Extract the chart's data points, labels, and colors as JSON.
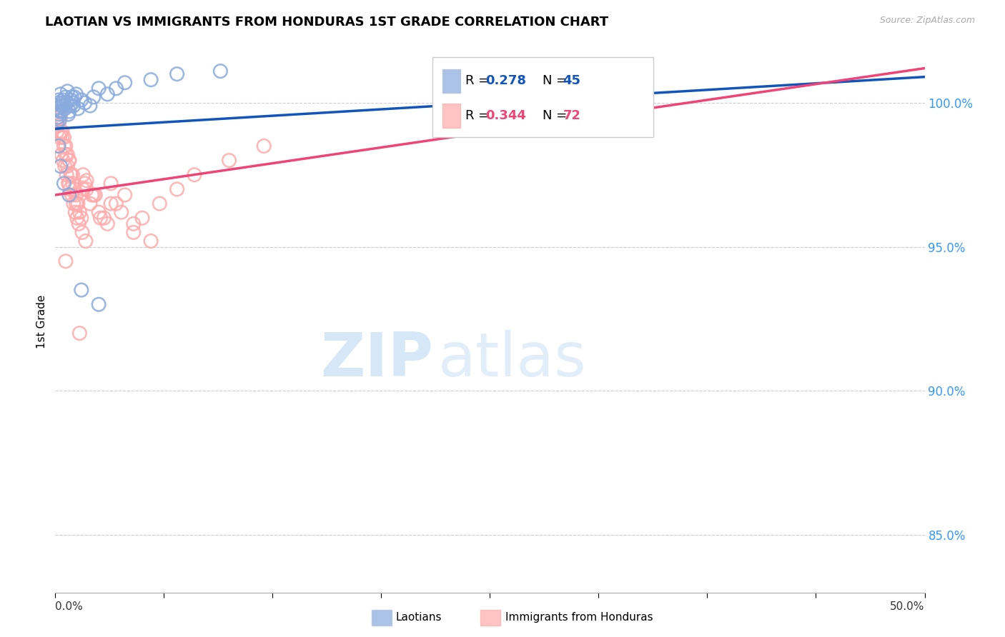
{
  "title": "LAOTIAN VS IMMIGRANTS FROM HONDURAS 1ST GRADE CORRELATION CHART",
  "source_text": "Source: ZipAtlas.com",
  "ylabel": "1st Grade",
  "xlim": [
    0.0,
    50.0
  ],
  "ylim": [
    83.0,
    101.8
  ],
  "yticks": [
    85.0,
    90.0,
    95.0,
    100.0
  ],
  "blue_R": 0.278,
  "blue_N": 45,
  "pink_R": 0.344,
  "pink_N": 72,
  "blue_color": "#88aadd",
  "pink_color": "#ffaaaa",
  "blue_line_color": "#1155bb",
  "pink_line_color": "#ee4477",
  "blue_line": {
    "x0": 0.0,
    "y0": 99.1,
    "x1": 50.0,
    "y1": 100.9
  },
  "pink_line": {
    "x0": 0.0,
    "y0": 96.8,
    "x1": 50.0,
    "y1": 101.2
  },
  "blue_scatter_x": [
    0.1,
    0.2,
    0.3,
    0.4,
    0.5,
    0.6,
    0.7,
    0.8,
    0.9,
    1.0,
    1.1,
    1.2,
    1.3,
    1.5,
    1.7,
    2.0,
    2.2,
    2.5,
    3.0,
    3.5,
    0.15,
    0.25,
    0.35,
    0.45,
    0.55,
    0.65,
    0.75,
    0.85,
    0.95,
    1.05,
    0.2,
    0.3,
    0.5,
    0.8,
    1.5,
    2.5,
    4.0,
    5.5,
    7.0,
    9.5,
    0.1,
    0.2,
    0.15,
    0.25,
    0.35
  ],
  "blue_scatter_y": [
    99.8,
    100.1,
    100.3,
    100.0,
    99.9,
    100.2,
    100.4,
    99.7,
    100.1,
    100.0,
    100.2,
    100.3,
    99.8,
    100.1,
    100.0,
    99.9,
    100.2,
    100.5,
    100.3,
    100.5,
    99.5,
    99.7,
    99.9,
    100.1,
    99.8,
    100.0,
    99.6,
    99.9,
    100.2,
    99.9,
    98.5,
    97.8,
    97.2,
    96.8,
    93.5,
    93.0,
    100.7,
    100.8,
    101.0,
    101.1,
    99.3,
    99.6,
    100.0,
    99.4,
    99.7
  ],
  "pink_scatter_x": [
    0.1,
    0.2,
    0.3,
    0.4,
    0.5,
    0.6,
    0.7,
    0.8,
    0.9,
    1.0,
    1.1,
    1.2,
    1.3,
    1.4,
    1.5,
    1.6,
    1.7,
    1.8,
    2.0,
    2.2,
    2.5,
    2.8,
    3.0,
    3.2,
    3.5,
    4.0,
    4.5,
    5.0,
    6.0,
    7.0,
    0.15,
    0.25,
    0.35,
    0.45,
    0.55,
    0.65,
    0.75,
    0.85,
    0.95,
    1.05,
    1.15,
    1.25,
    1.35,
    1.55,
    1.75,
    0.2,
    0.4,
    0.6,
    0.8,
    1.0,
    8.0,
    10.0,
    12.0,
    0.3,
    0.7,
    1.2,
    0.5,
    1.8,
    2.3,
    3.8,
    0.1,
    4.5,
    0.8,
    2.6,
    5.5,
    0.2,
    1.6,
    3.2,
    2.1,
    0.9,
    1.4,
    0.6
  ],
  "pink_scatter_y": [
    99.2,
    99.5,
    99.0,
    98.8,
    98.5,
    98.2,
    97.8,
    98.0,
    97.5,
    97.2,
    97.0,
    96.8,
    96.5,
    96.2,
    96.0,
    97.5,
    97.2,
    97.0,
    96.5,
    96.8,
    96.2,
    96.0,
    95.8,
    97.2,
    96.5,
    96.8,
    95.5,
    96.0,
    96.5,
    97.0,
    98.5,
    98.8,
    98.2,
    98.0,
    97.8,
    97.5,
    97.2,
    97.0,
    96.8,
    96.5,
    96.2,
    96.0,
    95.8,
    95.5,
    95.2,
    99.3,
    99.0,
    98.5,
    98.0,
    97.5,
    97.5,
    98.0,
    98.5,
    99.5,
    98.2,
    96.5,
    98.8,
    97.3,
    96.8,
    96.2,
    99.0,
    95.8,
    97.2,
    96.0,
    95.2,
    99.4,
    97.0,
    96.5,
    96.8,
    97.5,
    92.0,
    94.5
  ]
}
